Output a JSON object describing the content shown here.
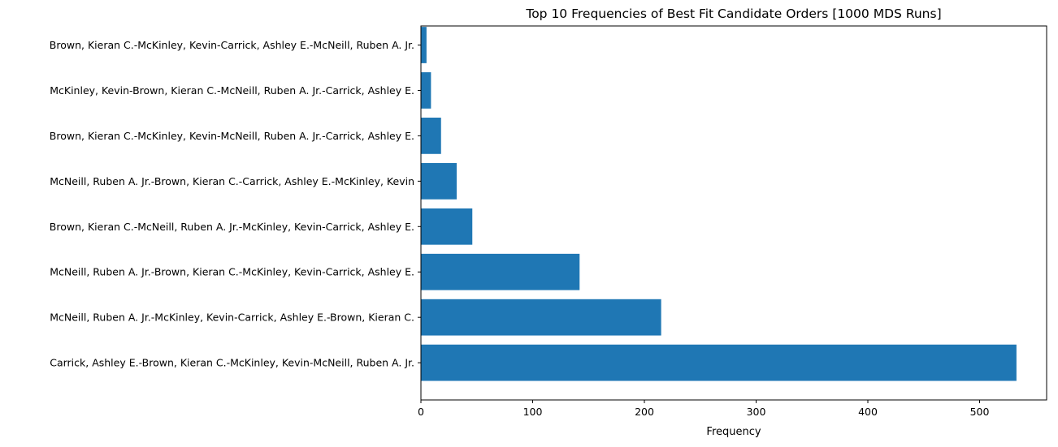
{
  "chart_data": {
    "type": "bar",
    "orientation": "horizontal",
    "title": "Top 10 Frequencies of Best Fit Candidate Orders [1000 MDS Runs]",
    "xlabel": "Frequency",
    "ylabel": "",
    "xlim": [
      0,
      560
    ],
    "xticks": [
      0,
      100,
      200,
      300,
      400,
      500
    ],
    "grid": false,
    "bar_color": "#1f77b4",
    "categories": [
      "Carrick, Ashley E.-Brown, Kieran C.-McKinley, Kevin-McNeill, Ruben A. Jr.",
      "McNeill, Ruben A. Jr.-McKinley, Kevin-Carrick, Ashley E.-Brown, Kieran C.",
      "McNeill, Ruben A. Jr.-Brown, Kieran C.-McKinley, Kevin-Carrick, Ashley E.",
      "Brown, Kieran C.-McNeill, Ruben A. Jr.-McKinley, Kevin-Carrick, Ashley E.",
      "McNeill, Ruben A. Jr.-Brown, Kieran C.-Carrick, Ashley E.-McKinley, Kevin",
      "Brown, Kieran C.-McKinley, Kevin-McNeill, Ruben A. Jr.-Carrick, Ashley E.",
      "McKinley, Kevin-Brown, Kieran C.-McNeill, Ruben A. Jr.-Carrick, Ashley E.",
      "Brown, Kieran C.-McKinley, Kevin-Carrick, Ashley E.-McNeill, Ruben A. Jr."
    ],
    "values": [
      533,
      215,
      142,
      46,
      32,
      18,
      9,
      5
    ]
  }
}
